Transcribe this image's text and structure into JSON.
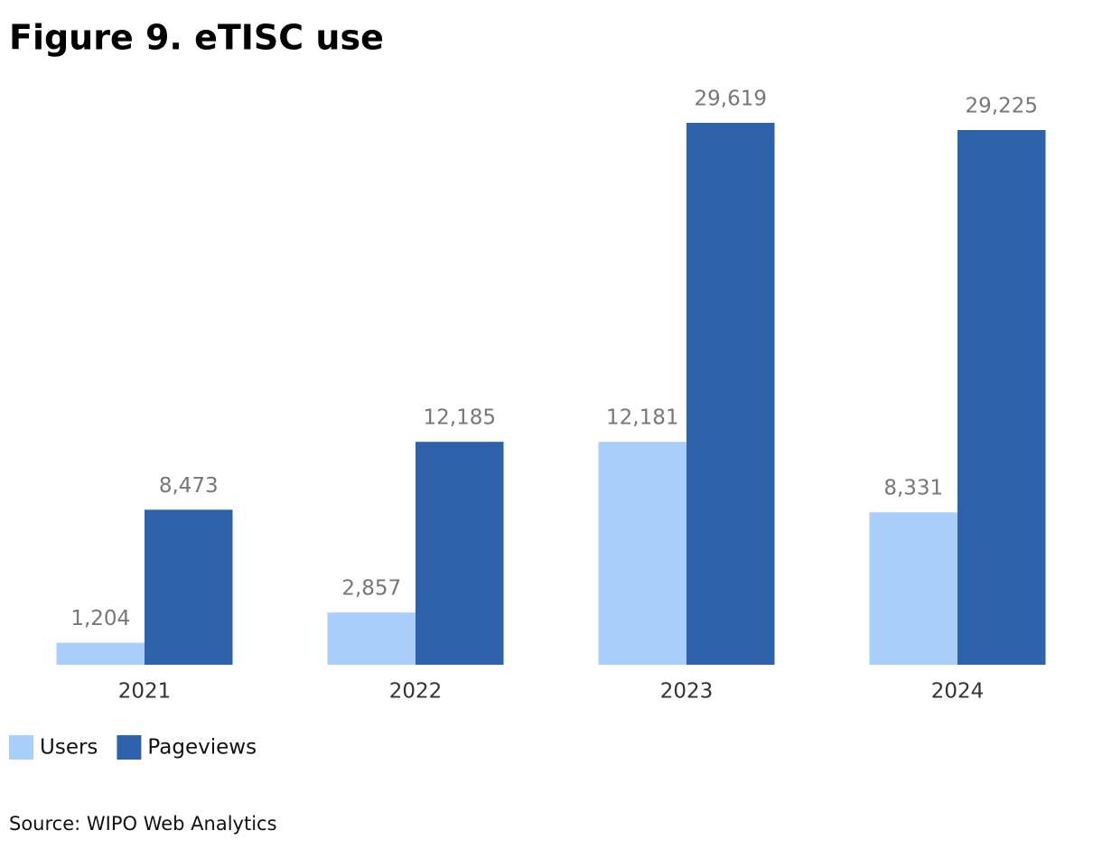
{
  "chart_data": {
    "type": "bar",
    "title": "Figure 9. eTISC use",
    "categories": [
      "2021",
      "2022",
      "2023",
      "2024"
    ],
    "series": [
      {
        "name": "Users",
        "color": "#a9cefb",
        "values": [
          1204,
          2857,
          12181,
          8331
        ],
        "value_labels": [
          "1,204",
          "2,857",
          "12,181",
          "8,331"
        ]
      },
      {
        "name": "Pageviews",
        "color": "#2e62ab",
        "values": [
          8473,
          12185,
          29619,
          29225
        ],
        "value_labels": [
          "8,473",
          "12,185",
          "29,619",
          "29,225"
        ]
      }
    ],
    "source": "Source: WIPO Web Analytics"
  }
}
